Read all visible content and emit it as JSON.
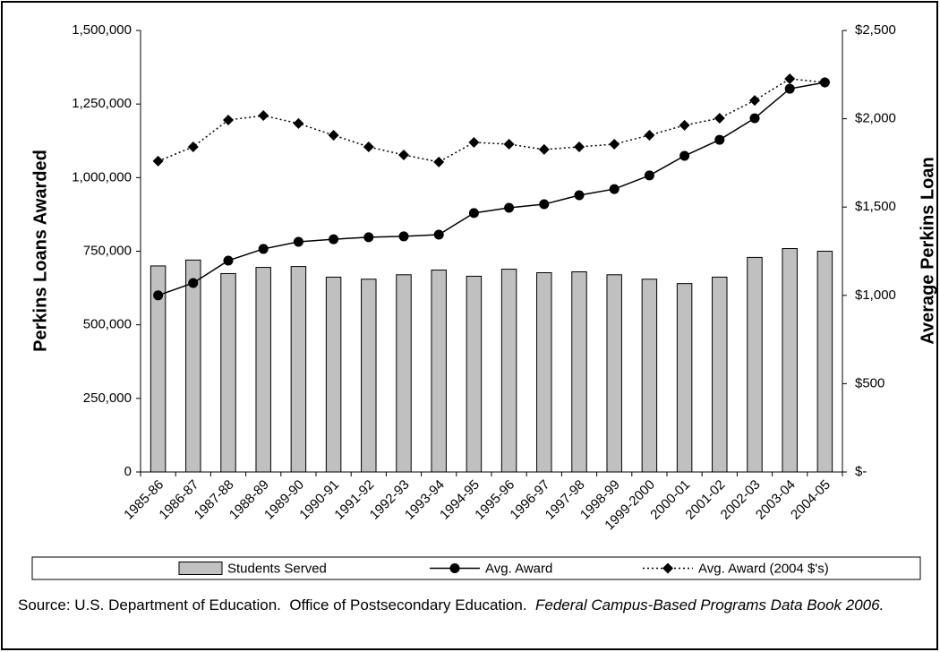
{
  "chart_data": {
    "type": "bar",
    "categories": [
      "1985-86",
      "1986-87",
      "1987-88",
      "1988-89",
      "1989-90",
      "1990-91",
      "1991-92",
      "1992-93",
      "1993-94",
      "1994-95",
      "1995-96",
      "1996-97",
      "1997-98",
      "1998-99",
      "1999-2000",
      "2000-01",
      "2001-02",
      "2002-03",
      "2003-04",
      "2004-05"
    ],
    "series": [
      {
        "name": "Students Served",
        "type": "bar",
        "color": "#c0c0c0",
        "values": [
          700000,
          720000,
          674000,
          695000,
          698000,
          662000,
          655000,
          670000,
          686000,
          665000,
          689000,
          677000,
          680000,
          670000,
          655000,
          640000,
          662000,
          729000,
          759000,
          750000
        ]
      },
      {
        "name": "Avg. Award",
        "type": "line",
        "axis": "y2",
        "color": "#000000",
        "marker": "circle",
        "line_style": "solid",
        "values": [
          1000,
          1070,
          1197,
          1263,
          1303,
          1318,
          1329,
          1334,
          1344,
          1466,
          1496,
          1516,
          1567,
          1602,
          1679,
          1790,
          1881,
          2003,
          2170,
          2206
        ]
      },
      {
        "name": "Avg. Award (2004 $'s)",
        "type": "line",
        "axis": "y2",
        "color": "#000000",
        "marker": "diamond",
        "line_style": "dotted",
        "values": [
          1760,
          1841,
          1993,
          2018,
          1973,
          1907,
          1841,
          1795,
          1755,
          1866,
          1856,
          1826,
          1841,
          1856,
          1907,
          1963,
          2003,
          2104,
          2226,
          2206
        ]
      }
    ],
    "ylabel": "Perkins Loans Awarded",
    "y2label": "Average Perkins Loan",
    "ylim": [
      0,
      1500000
    ],
    "yticks": [
      0,
      {
        "value": 250000,
        "label": "250,000"
      },
      {
        "value": 500000,
        "label": "500,000"
      },
      {
        "value": 750000,
        "label": "750,000"
      },
      {
        "value": 1000000,
        "label": "1,000,000"
      },
      {
        "value": 1250000,
        "label": "1,250,000"
      },
      {
        "value": 1500000,
        "label": "1,500,000"
      }
    ],
    "y2lim": [
      0,
      2500
    ],
    "y2ticks": [
      {
        "value": 0,
        "label": "$-"
      },
      {
        "value": 500,
        "label": "$500"
      },
      {
        "value": 1000,
        "label": "$1,000"
      },
      {
        "value": 1500,
        "label": "$1,500"
      },
      {
        "value": 2000,
        "label": "$2,000"
      },
      {
        "value": 2500,
        "label": "$2,500"
      }
    ],
    "grid": false,
    "legend": "bottom"
  },
  "source": {
    "text": "Source: U.S. Department of Education.  Office of Postsecondary Education.  ",
    "publication": "Federal Campus-Based Programs Data Book 2006."
  }
}
